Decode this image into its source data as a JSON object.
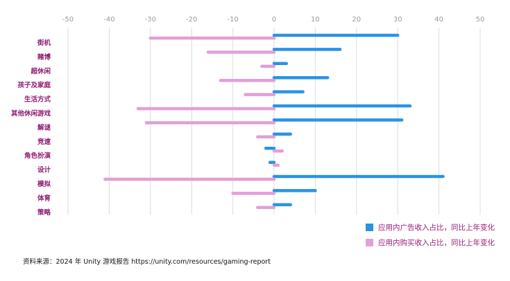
{
  "chart_data": {
    "type": "bar",
    "orientation": "horizontal",
    "categories": [
      "街机",
      "赌博",
      "超休闲",
      "孩子及家庭",
      "生活方式",
      "其他休闲游戏",
      "解谜",
      "竞速",
      "角色扮演",
      "设计",
      "模拟",
      "体育",
      "策略"
    ],
    "series": [
      {
        "name": "应用内广告收入占比，同比上年变化",
        "color": "#2a93e6",
        "values": [
          30,
          16,
          3,
          13,
          7,
          33,
          31,
          4,
          -2,
          -1,
          41,
          10,
          4
        ]
      },
      {
        "name": "应用内购买收入占比，同比上年变化",
        "color": "#e29fd8",
        "values": [
          -30,
          -16,
          -3,
          -13,
          -7,
          -33,
          -31,
          -4,
          2,
          1,
          -41,
          -10,
          -4
        ]
      }
    ],
    "xlim": [
      -50,
      50
    ],
    "xticks": [
      -50,
      -40,
      -30,
      -20,
      -10,
      0,
      10,
      20,
      30,
      40,
      50
    ],
    "grid": true,
    "legend_position": "bottom-right",
    "title": "",
    "xlabel": "",
    "ylabel": ""
  },
  "source": "资料来源：2024 年 Unity 游戏报告 https://unity.com/resources/gaming-report"
}
